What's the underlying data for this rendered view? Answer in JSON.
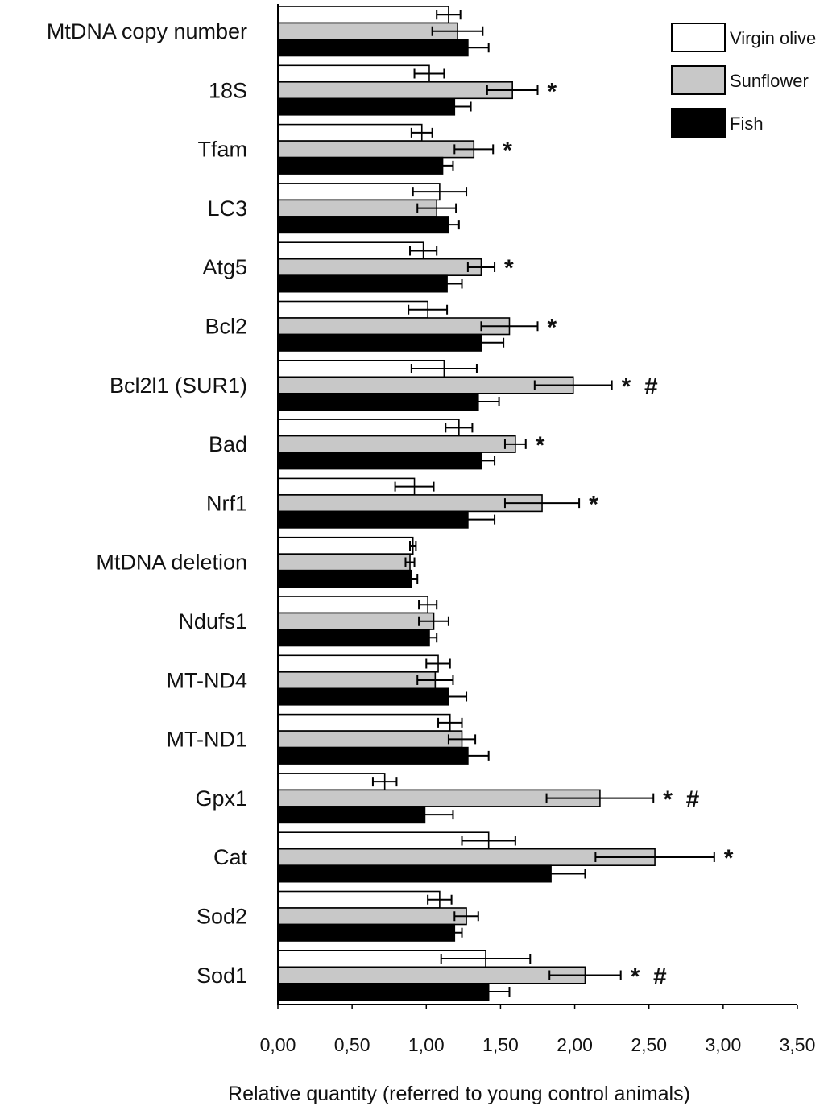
{
  "chart_data": {
    "type": "bar",
    "orientation": "horizontal",
    "xlabel": "Relative quantity  (referred to young control animals)",
    "ylabel": "",
    "xlim": [
      0,
      3.5
    ],
    "xticks": [
      "0,00",
      "0,50",
      "1,00",
      "1,50",
      "2,00",
      "2,50",
      "3,00",
      "3,50"
    ],
    "xtick_values": [
      0,
      0.5,
      1,
      1.5,
      2,
      2.5,
      3,
      3.5
    ],
    "grid": false,
    "legend_position": "top-right",
    "categories": [
      "MtDNA copy number",
      "18S",
      "Tfam",
      "LC3",
      "Atg5",
      "Bcl2",
      "Bcl2l1 (SUR1)",
      "Bad",
      "Nrf1",
      "MtDNA deletion",
      "Ndufs1",
      "MT-ND4",
      "MT-ND1",
      "Gpx1",
      "Cat",
      "Sod2",
      "Sod1"
    ],
    "series": [
      {
        "name": "Virgin olive",
        "color": "#ffffff",
        "values": [
          1.15,
          1.02,
          0.97,
          1.09,
          0.98,
          1.01,
          1.12,
          1.22,
          0.92,
          0.91,
          1.01,
          1.08,
          1.16,
          0.72,
          1.42,
          1.09,
          1.4
        ],
        "errors": [
          0.08,
          0.1,
          0.07,
          0.18,
          0.09,
          0.13,
          0.22,
          0.09,
          0.13,
          0.02,
          0.06,
          0.08,
          0.08,
          0.08,
          0.18,
          0.08,
          0.3
        ]
      },
      {
        "name": "Sunflower",
        "color": "#c8c8c8",
        "values": [
          1.21,
          1.58,
          1.32,
          1.07,
          1.37,
          1.56,
          1.99,
          1.6,
          1.78,
          0.89,
          1.05,
          1.06,
          1.24,
          2.17,
          2.54,
          1.27,
          2.07
        ],
        "errors": [
          0.17,
          0.17,
          0.13,
          0.13,
          0.09,
          0.19,
          0.26,
          0.07,
          0.25,
          0.03,
          0.1,
          0.12,
          0.09,
          0.36,
          0.4,
          0.08,
          0.24
        ]
      },
      {
        "name": "Fish",
        "color": "#000000",
        "values": [
          1.28,
          1.19,
          1.11,
          1.15,
          1.14,
          1.37,
          1.35,
          1.37,
          1.28,
          0.9,
          1.02,
          1.15,
          1.28,
          0.99,
          1.84,
          1.19,
          1.42
        ],
        "errors": [
          0.14,
          0.11,
          0.07,
          0.07,
          0.1,
          0.15,
          0.14,
          0.09,
          0.18,
          0.04,
          0.05,
          0.12,
          0.14,
          0.19,
          0.23,
          0.05,
          0.14
        ]
      }
    ],
    "significance": [
      {
        "category": "18S",
        "text": "*"
      },
      {
        "category": "Tfam",
        "text": "*"
      },
      {
        "category": "Atg5",
        "text": "*"
      },
      {
        "category": "Bcl2",
        "text": "*"
      },
      {
        "category": "Bcl2l1 (SUR1)",
        "text": "*  #"
      },
      {
        "category": "Bad",
        "text": "*"
      },
      {
        "category": "Nrf1",
        "text": "*"
      },
      {
        "category": "Gpx1",
        "text": "*  #"
      },
      {
        "category": "Cat",
        "text": "*"
      },
      {
        "category": "Sod1",
        "text": "*  #"
      }
    ]
  }
}
